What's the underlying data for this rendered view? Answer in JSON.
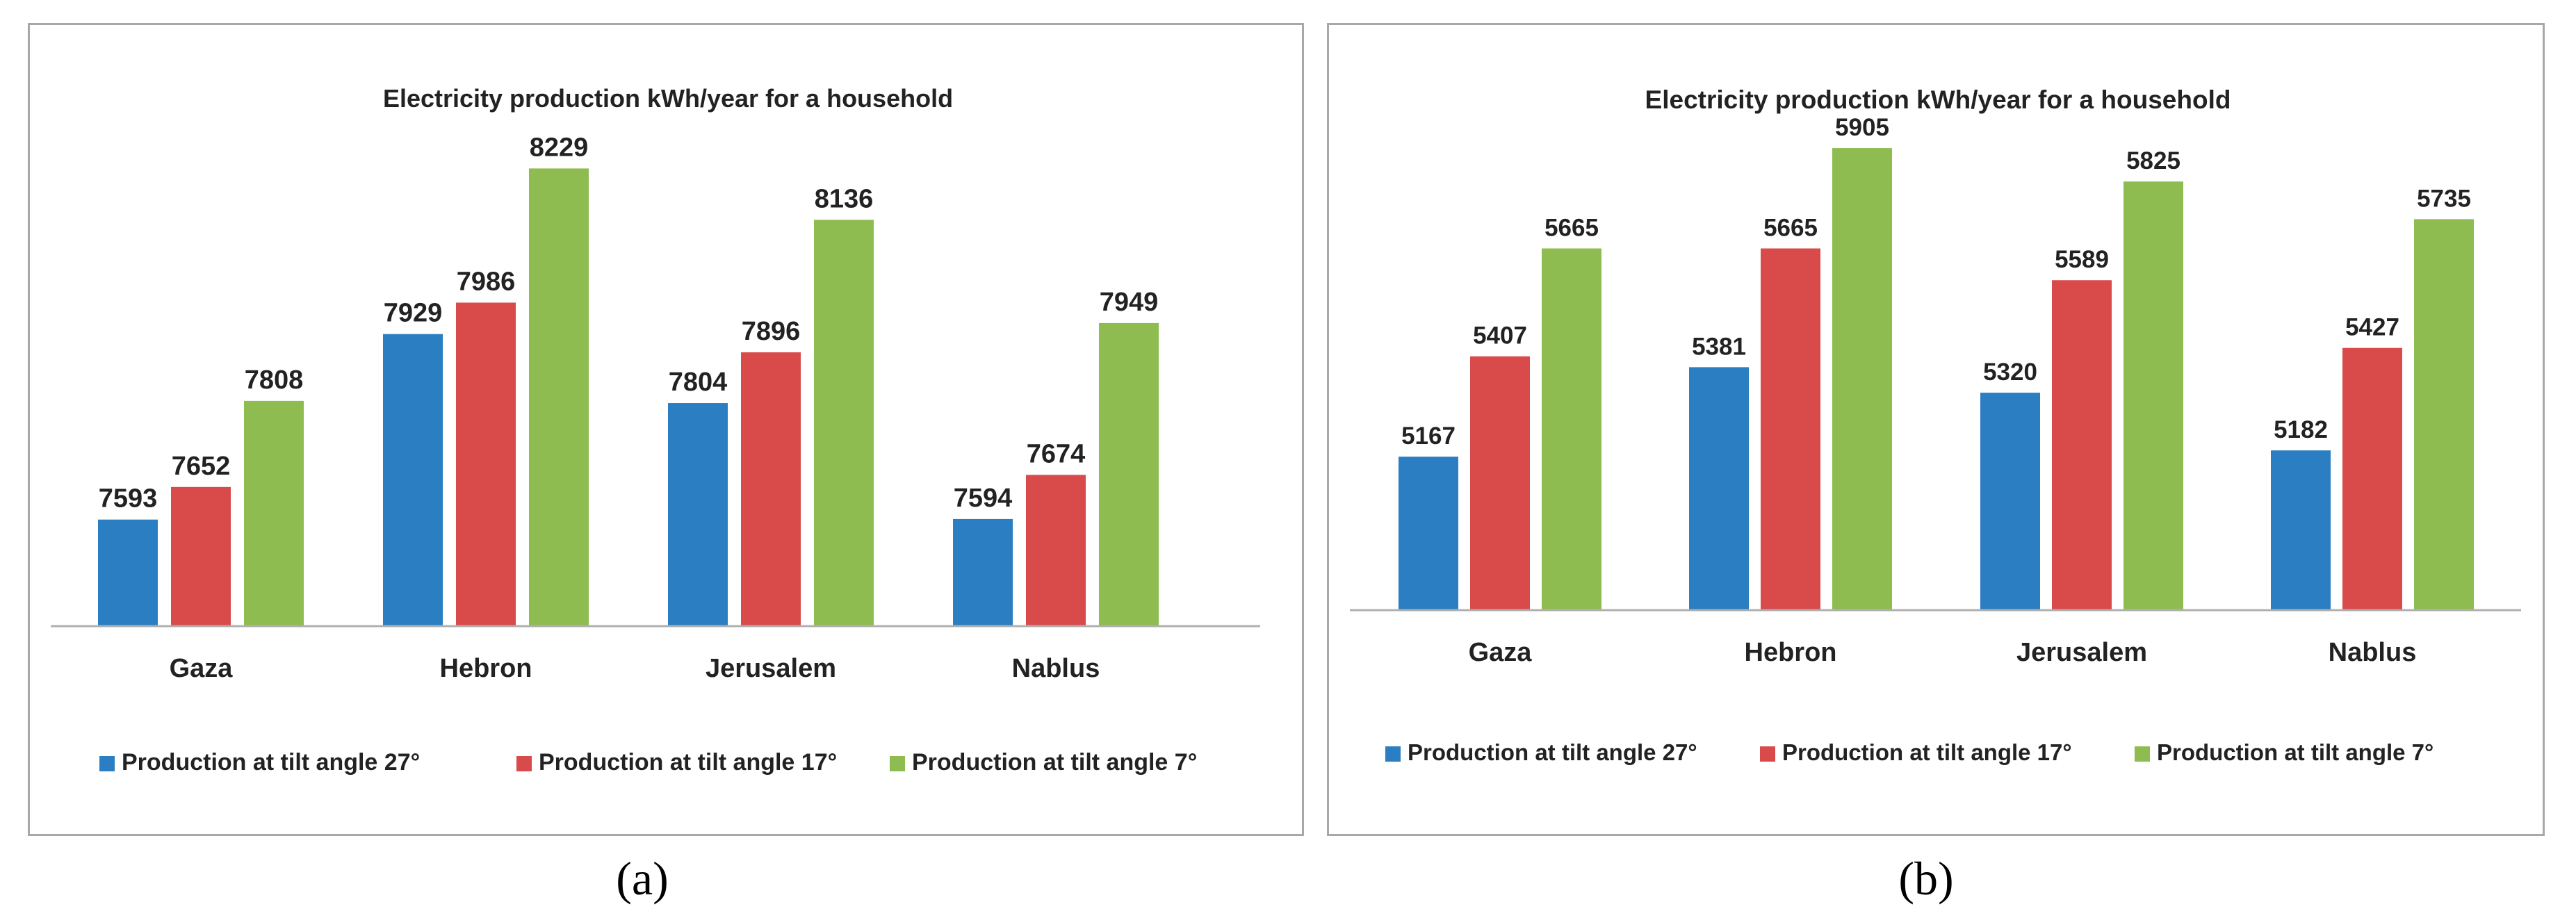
{
  "chart_data": [
    {
      "type": "bar",
      "title": "Electricity production  kWh/year for a household",
      "categories": [
        "Gaza",
        "Hebron",
        "Jerusalem",
        "Nablus"
      ],
      "series": [
        {
          "name": "Production at tilt angle 27°",
          "color": "#2b7ec1",
          "values": [
            7593,
            7929,
            7804,
            7594
          ]
        },
        {
          "name": "Production at tilt angle 17°",
          "color": "#d94b4b",
          "values": [
            7652,
            7986,
            7896,
            7674
          ]
        },
        {
          "name": "Production at tilt angle 7°",
          "color": "#8fbc50",
          "values": [
            7808,
            8229,
            8136,
            7949
          ]
        }
      ],
      "xlabel": "",
      "ylabel": "",
      "ylim": [
        7400,
        8300
      ],
      "grid": false,
      "legend": "bottom",
      "sublabel": "(a)"
    },
    {
      "type": "bar",
      "title": "Electricity production kWh/year for a household",
      "categories": [
        "Gaza",
        "Hebron",
        "Jerusalem",
        "Nablus"
      ],
      "series": [
        {
          "name": "Production at tilt angle 27°",
          "color": "#2b7ec1",
          "values": [
            5167,
            5381,
            5320,
            5182
          ]
        },
        {
          "name": "Production at tilt angle 17°",
          "color": "#d94b4b",
          "values": [
            5407,
            5665,
            5589,
            5427
          ]
        },
        {
          "name": "Production at tilt angle 7°",
          "color": "#8fbc50",
          "values": [
            5665,
            5905,
            5825,
            5735
          ]
        }
      ],
      "xlabel": "",
      "ylabel": "",
      "ylim": [
        4800,
        5950
      ],
      "grid": false,
      "legend": "bottom",
      "sublabel": "(b)"
    }
  ]
}
